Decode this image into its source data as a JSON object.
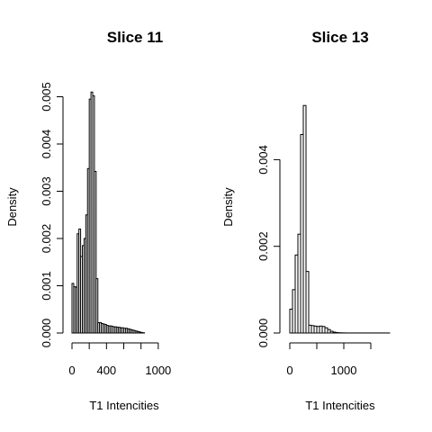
{
  "chart_data": [
    {
      "type": "bar",
      "title": "Slice 11",
      "xlabel": "T1 Intencities",
      "ylabel": "Density",
      "bin_width": 20,
      "x_start": 0,
      "xlim": [
        0,
        1200
      ],
      "ylim": [
        0,
        0.0052
      ],
      "x_ticks": [
        0,
        400,
        1000
      ],
      "x_ticks_all": [
        0,
        200,
        400,
        600,
        800,
        1000
      ],
      "y_ticks": [
        0.0,
        0.001,
        0.002,
        0.003,
        0.004,
        0.005
      ],
      "y_tick_labels": [
        "0.000",
        "0.001",
        "0.002",
        "0.003",
        "0.004",
        "0.005"
      ],
      "values": [
        0.00105,
        0.00098,
        0.00097,
        0.0021,
        0.0022,
        0.00162,
        0.00185,
        0.002,
        0.0025,
        0.00348,
        0.00495,
        0.0051,
        0.00502,
        0.00342,
        0.00115,
        0.00022,
        0.00022,
        0.0002,
        0.00019,
        0.00018,
        0.00016,
        0.00015,
        0.00015,
        0.00014,
        0.00013,
        0.00013,
        0.00012,
        0.00012,
        0.00011,
        0.00011,
        0.0001,
        0.0001,
        9e-05,
        8e-05,
        7e-05,
        6e-05,
        5e-05,
        4e-05,
        3e-05,
        2e-05,
        1e-05,
        5e-06
      ]
    },
    {
      "type": "bar",
      "title": "Slice 13",
      "xlabel": "T1 Intencities",
      "ylabel": "Density",
      "bin_width": 50,
      "x_start": 0,
      "xlim": [
        0,
        1900
      ],
      "ylim": [
        0,
        0.0054
      ],
      "x_ticks": [
        0,
        1000
      ],
      "x_ticks_all": [
        0,
        500,
        1000,
        1500
      ],
      "y_ticks": [
        0.0,
        0.002,
        0.004
      ],
      "y_tick_labels": [
        "0.000",
        "0.002",
        "0.004"
      ],
      "values": [
        0.00055,
        0.001,
        0.0018,
        0.00228,
        0.00458,
        0.00525,
        0.00142,
        0.00018,
        0.00017,
        0.00016,
        0.00015,
        0.00016,
        0.00015,
        0.00012,
        8e-05,
        4e-05,
        2e-05,
        1e-05,
        5e-06,
        3e-06,
        2e-06,
        1e-06,
        1e-06,
        1e-06,
        1e-06,
        1e-06,
        1e-06,
        1e-06,
        1e-06,
        1e-06,
        1e-06,
        1e-06,
        1e-06,
        1e-06,
        1e-06,
        1e-06,
        1e-06
      ]
    }
  ]
}
